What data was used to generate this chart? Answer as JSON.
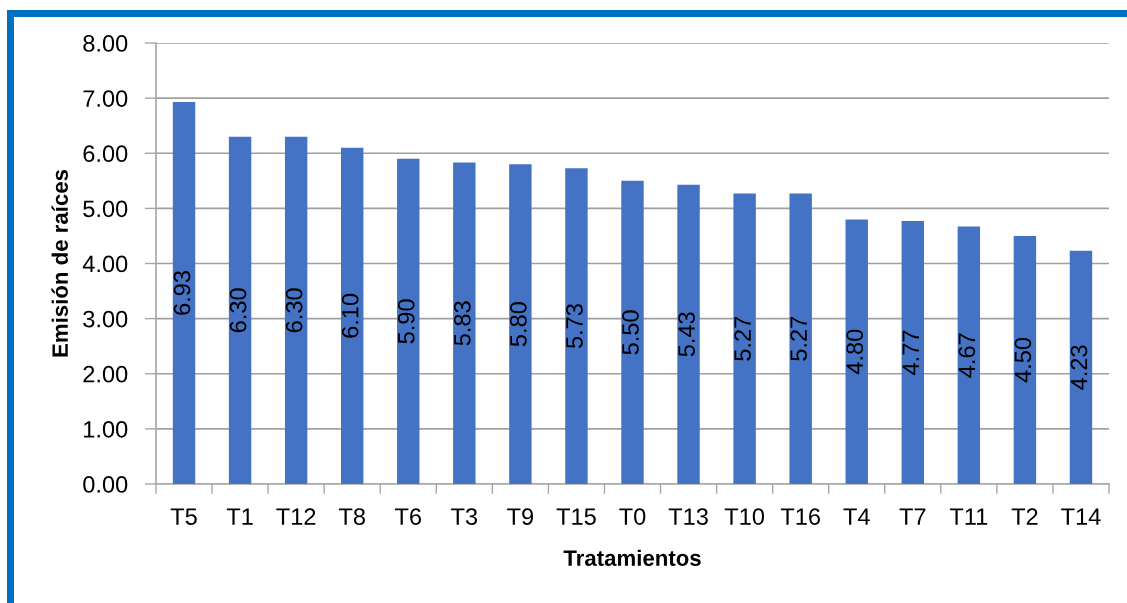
{
  "chart_data": {
    "type": "bar",
    "categories": [
      "T5",
      "T1",
      "T12",
      "T8",
      "T6",
      "T3",
      "T9",
      "T15",
      "T0",
      "T13",
      "T10",
      "T16",
      "T4",
      "T7",
      "T11",
      "T2",
      "T14"
    ],
    "values": [
      6.93,
      6.3,
      6.3,
      6.1,
      5.9,
      5.83,
      5.8,
      5.73,
      5.5,
      5.43,
      5.27,
      5.27,
      4.8,
      4.77,
      4.67,
      4.5,
      4.23
    ],
    "value_labels": [
      "6.93",
      "6.30",
      "6.30",
      "6.10",
      "5.90",
      "5.83",
      "5.80",
      "5.73",
      "5.50",
      "5.43",
      "5.27",
      "5.27",
      "4.80",
      "4.77",
      "4.67",
      "4.50",
      "4.23"
    ],
    "color": "#4472c4",
    "xlabel": "Tratamientos",
    "ylabel": "Emisión de raíces",
    "ylim": [
      0,
      8
    ],
    "yticks": [
      {
        "value": 0,
        "label": "0.00"
      },
      {
        "value": 1,
        "label": "1.00"
      },
      {
        "value": 2,
        "label": "2.00"
      },
      {
        "value": 3,
        "label": "3.00"
      },
      {
        "value": 4,
        "label": "4.00"
      },
      {
        "value": 5,
        "label": "5.00"
      },
      {
        "value": 6,
        "label": "6.00"
      },
      {
        "value": 7,
        "label": "7.00"
      },
      {
        "value": 8,
        "label": "8.00"
      }
    ],
    "grid": "y"
  }
}
